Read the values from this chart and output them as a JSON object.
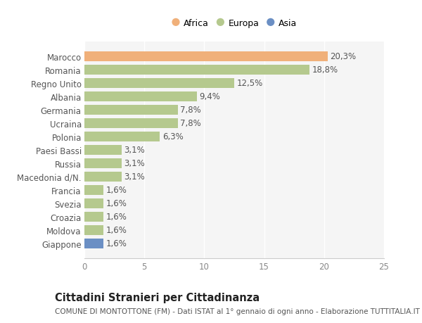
{
  "categories": [
    "Giappone",
    "Moldova",
    "Croazia",
    "Svezia",
    "Francia",
    "Macedonia d/N.",
    "Russia",
    "Paesi Bassi",
    "Polonia",
    "Ucraina",
    "Germania",
    "Albania",
    "Regno Unito",
    "Romania",
    "Marocco"
  ],
  "values": [
    1.6,
    1.6,
    1.6,
    1.6,
    1.6,
    3.1,
    3.1,
    3.1,
    6.3,
    7.8,
    7.8,
    9.4,
    12.5,
    18.8,
    20.3
  ],
  "colors": [
    "#6b8fc4",
    "#b5c98e",
    "#b5c98e",
    "#b5c98e",
    "#b5c98e",
    "#b5c98e",
    "#b5c98e",
    "#b5c98e",
    "#b5c98e",
    "#b5c98e",
    "#b5c98e",
    "#b5c98e",
    "#b5c98e",
    "#b5c98e",
    "#f0b07a"
  ],
  "labels": [
    "1,6%",
    "1,6%",
    "1,6%",
    "1,6%",
    "1,6%",
    "3,1%",
    "3,1%",
    "3,1%",
    "6,3%",
    "7,8%",
    "7,8%",
    "9,4%",
    "12,5%",
    "18,8%",
    "20,3%"
  ],
  "xlim": [
    0,
    25
  ],
  "xticks": [
    0,
    5,
    10,
    15,
    20,
    25
  ],
  "title": "Cittadini Stranieri per Cittadinanza",
  "subtitle": "COMUNE DI MONTOTTONE (FM) - Dati ISTAT al 1° gennaio di ogni anno - Elaborazione TUTTITALIA.IT",
  "legend_labels": [
    "Africa",
    "Europa",
    "Asia"
  ],
  "legend_colors": [
    "#f0b07a",
    "#b5c98e",
    "#6b8fc4"
  ],
  "background_color": "#ffffff",
  "plot_bg_color": "#f5f5f5",
  "bar_height": 0.75,
  "label_fontsize": 8.5,
  "tick_fontsize": 8.5,
  "title_fontsize": 10.5,
  "subtitle_fontsize": 7.5
}
